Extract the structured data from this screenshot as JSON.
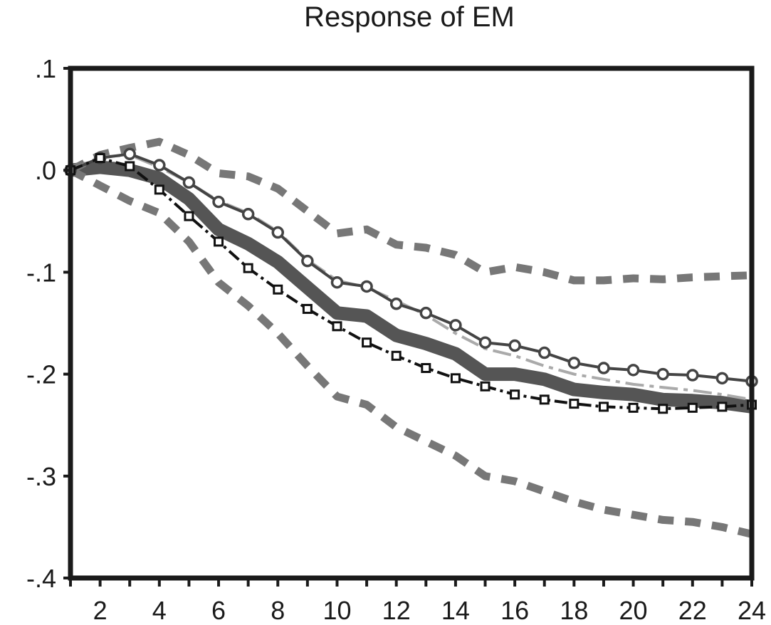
{
  "chart_data": {
    "type": "line",
    "title": "Response of EM",
    "xlabel": "",
    "ylabel": "",
    "xlim": [
      1,
      24
    ],
    "ylim": [
      -0.4,
      0.1
    ],
    "x_ticks": [
      2,
      4,
      6,
      8,
      10,
      12,
      14,
      16,
      18,
      20,
      22,
      24
    ],
    "x_tick_labels": [
      "2",
      "4",
      "6",
      "8",
      "10",
      "12",
      "14",
      "16",
      "18",
      "20",
      "22",
      "24"
    ],
    "y_ticks": [
      0.1,
      0.0,
      -0.1,
      -0.2,
      -0.3,
      -0.4
    ],
    "y_tick_labels": [
      ".1",
      ".0",
      "-.1",
      "-.2",
      "-.3",
      "-.4"
    ],
    "grid": false,
    "x": [
      1,
      2,
      3,
      4,
      5,
      6,
      7,
      8,
      9,
      10,
      11,
      12,
      13,
      14,
      15,
      16,
      17,
      18,
      19,
      20,
      21,
      22,
      23,
      24
    ],
    "series": [
      {
        "style": "thick-solid",
        "color": "#555555",
        "values": [
          0.0,
          0.003,
          0.0,
          -0.008,
          -0.028,
          -0.058,
          -0.072,
          -0.09,
          -0.115,
          -0.14,
          -0.143,
          -0.162,
          -0.17,
          -0.18,
          -0.2,
          -0.2,
          -0.205,
          -0.215,
          -0.218,
          -0.22,
          -0.225,
          -0.226,
          -0.228,
          -0.232
        ]
      },
      {
        "style": "dashed-upper-band",
        "color": "#777777",
        "values": [
          0.0,
          0.015,
          0.022,
          0.028,
          0.015,
          -0.003,
          -0.006,
          -0.018,
          -0.04,
          -0.062,
          -0.058,
          -0.073,
          -0.076,
          -0.083,
          -0.1,
          -0.095,
          -0.1,
          -0.108,
          -0.108,
          -0.106,
          -0.107,
          -0.105,
          -0.104,
          -0.103
        ]
      },
      {
        "style": "dashed-lower-band",
        "color": "#777777",
        "values": [
          0.0,
          -0.015,
          -0.03,
          -0.042,
          -0.07,
          -0.11,
          -0.133,
          -0.16,
          -0.192,
          -0.222,
          -0.23,
          -0.252,
          -0.266,
          -0.28,
          -0.3,
          -0.305,
          -0.315,
          -0.325,
          -0.333,
          -0.338,
          -0.343,
          -0.345,
          -0.35,
          -0.357
        ]
      },
      {
        "style": "dash-dot-light",
        "color": "#aaaaaa",
        "values": [
          0.0,
          0.013,
          0.015,
          0.003,
          -0.012,
          -0.03,
          -0.042,
          -0.06,
          -0.088,
          -0.108,
          -0.115,
          -0.128,
          -0.142,
          -0.16,
          -0.175,
          -0.182,
          -0.192,
          -0.2,
          -0.205,
          -0.21,
          -0.213,
          -0.216,
          -0.22,
          -0.225
        ]
      },
      {
        "style": "open-circles",
        "color": "#444444",
        "values": [
          0.0,
          0.012,
          0.016,
          0.005,
          -0.012,
          -0.031,
          -0.043,
          -0.061,
          -0.089,
          -0.11,
          -0.114,
          -0.131,
          -0.14,
          -0.152,
          -0.169,
          -0.172,
          -0.179,
          -0.189,
          -0.194,
          -0.196,
          -0.2,
          -0.201,
          -0.204,
          -0.207
        ]
      },
      {
        "style": "open-squares-dashdot",
        "color": "#111111",
        "values": [
          0.0,
          0.012,
          0.004,
          -0.019,
          -0.045,
          -0.07,
          -0.096,
          -0.117,
          -0.136,
          -0.153,
          -0.169,
          -0.182,
          -0.194,
          -0.204,
          -0.212,
          -0.22,
          -0.225,
          -0.229,
          -0.232,
          -0.233,
          -0.234,
          -0.233,
          -0.232,
          -0.23
        ]
      }
    ]
  }
}
